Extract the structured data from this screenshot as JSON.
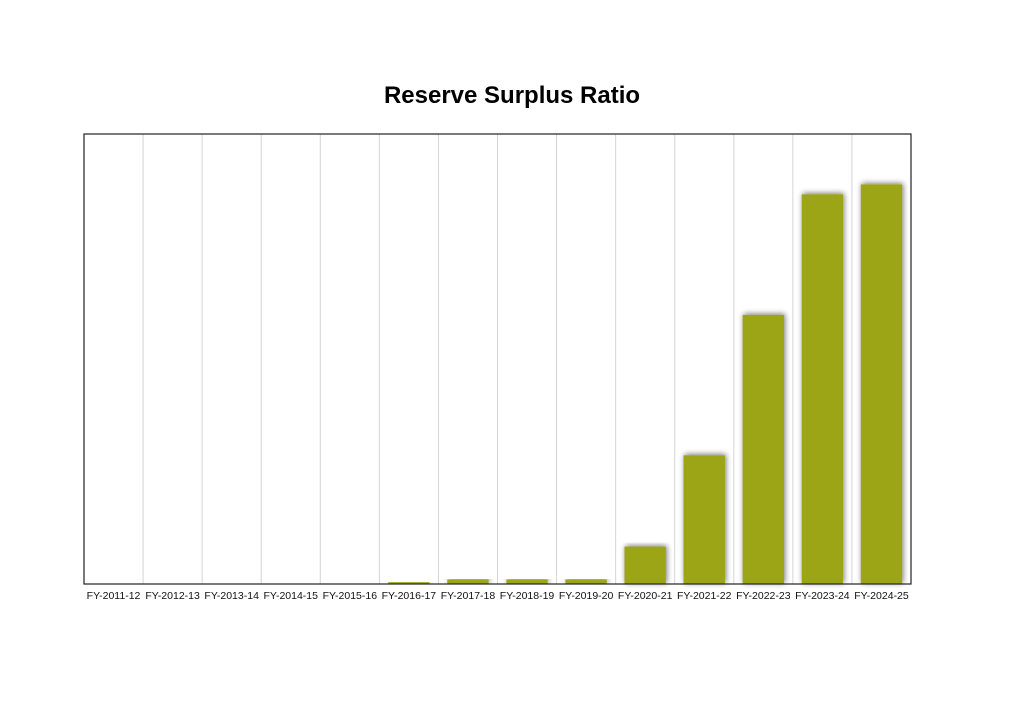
{
  "chart_data": {
    "type": "bar",
    "title": "Reserve Surplus Ratio",
    "xlabel": "",
    "ylabel": "",
    "categories": [
      "FY-2011-12",
      "FY-2012-13",
      "FY-2013-14",
      "FY-2014-15",
      "FY-2015-16",
      "FY-2016-17",
      "FY-2017-18",
      "FY-2018-19",
      "FY-2019-20",
      "FY-2020-21",
      "FY-2021-22",
      "FY-2022-23",
      "FY-2023-24",
      "FY-2024-25"
    ],
    "values": [
      0,
      0,
      0,
      0,
      0,
      0.4,
      1.0,
      1.0,
      1.0,
      8.3,
      28.6,
      59.8,
      86.6,
      88.8
    ],
    "ylim": [
      0,
      100
    ],
    "grid": true,
    "bar_color": "#9ca512",
    "show_y_axis_labels": false
  }
}
